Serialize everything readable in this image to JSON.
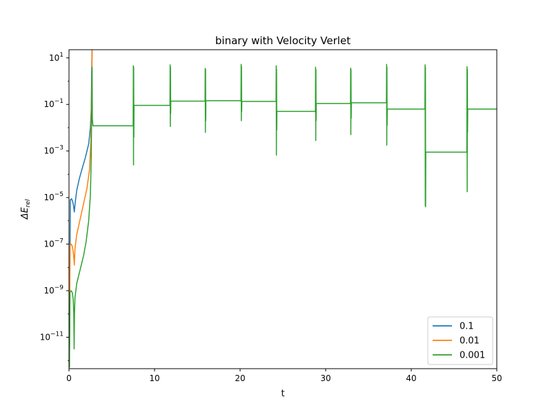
{
  "chart_data": {
    "type": "line",
    "title": "binary with Velocity Verlet",
    "xlabel": "t",
    "ylabel": "ΔE_rel",
    "ylabel_main": "ΔE",
    "ylabel_sub": "rel",
    "xscale": "linear",
    "yscale": "log",
    "xlim": [
      0,
      50
    ],
    "ylim_log10": [
      -12.35,
      1.35
    ],
    "x_ticks": [
      0,
      10,
      20,
      30,
      40,
      50
    ],
    "x_tick_labels": [
      "0",
      "10",
      "20",
      "30",
      "40",
      "50"
    ],
    "y_ticks_log10": [
      -11,
      -9,
      -7,
      -5,
      -3,
      -1,
      1
    ],
    "y_tick_labels": [
      {
        "base": "10",
        "exp": "−11"
      },
      {
        "base": "10",
        "exp": "−9"
      },
      {
        "base": "10",
        "exp": "−7"
      },
      {
        "base": "10",
        "exp": "−5"
      },
      {
        "base": "10",
        "exp": "−3"
      },
      {
        "base": "10",
        "exp": "−1"
      },
      {
        "base": "10",
        "exp": "1"
      }
    ],
    "grid": false,
    "legend_position": "lower-right",
    "series": [
      {
        "name": "0.1",
        "color": "#1f77b4",
        "points": [
          [
            0.05,
            -12.3
          ],
          [
            0.15,
            -5.1
          ],
          [
            0.3,
            -5.05
          ],
          [
            0.45,
            -5.2
          ],
          [
            0.55,
            -5.4
          ],
          [
            0.62,
            -5.62
          ],
          [
            0.7,
            -5.3
          ],
          [
            0.9,
            -4.7
          ],
          [
            1.2,
            -4.2
          ],
          [
            1.5,
            -3.8
          ],
          [
            1.9,
            -3.3
          ],
          [
            2.3,
            -2.7
          ],
          [
            2.5,
            -2.0
          ],
          [
            2.6,
            -1.2
          ],
          [
            2.65,
            0.4
          ],
          [
            2.7,
            1.38
          ],
          [
            50,
            1.38
          ]
        ]
      },
      {
        "name": "0.01",
        "color": "#ff7f0e",
        "points": [
          [
            0.05,
            -12.3
          ],
          [
            0.12,
            -7.05
          ],
          [
            0.25,
            -7.0
          ],
          [
            0.4,
            -7.1
          ],
          [
            0.5,
            -7.35
          ],
          [
            0.58,
            -7.65
          ],
          [
            0.62,
            -7.9
          ],
          [
            0.7,
            -7.2
          ],
          [
            0.9,
            -6.6
          ],
          [
            1.2,
            -6.1
          ],
          [
            1.5,
            -5.6
          ],
          [
            1.8,
            -5.1
          ],
          [
            2.1,
            -4.6
          ],
          [
            2.4,
            -3.8
          ],
          [
            2.55,
            -2.6
          ],
          [
            2.65,
            -0.5
          ],
          [
            2.72,
            1.72
          ],
          [
            50,
            1.72
          ]
        ]
      },
      {
        "name": "0.001",
        "color": "#2ca02c",
        "points": [
          [
            0.05,
            -12.3
          ],
          [
            0.12,
            -9.05
          ],
          [
            0.25,
            -9.0
          ],
          [
            0.4,
            -9.1
          ],
          [
            0.5,
            -9.4
          ],
          [
            0.56,
            -10.0
          ],
          [
            0.6,
            -11.5
          ],
          [
            0.64,
            -10.0
          ],
          [
            0.7,
            -9.3
          ],
          [
            0.9,
            -8.7
          ],
          [
            1.3,
            -8.1
          ],
          [
            1.7,
            -7.5
          ],
          [
            2.0,
            -6.9
          ],
          [
            2.3,
            -6.0
          ],
          [
            2.5,
            -4.9
          ],
          [
            2.6,
            -3.3
          ],
          [
            2.65,
            -1.2
          ],
          [
            2.7,
            0.6
          ],
          [
            2.73,
            -1.6
          ],
          [
            2.8,
            -1.92
          ],
          [
            7.5,
            -1.92
          ],
          [
            7.52,
            0.66
          ],
          [
            7.54,
            -3.6
          ],
          [
            7.56,
            0.6
          ],
          [
            7.58,
            -2.4
          ],
          [
            7.6,
            -1.04
          ],
          [
            11.8,
            -1.04
          ],
          [
            11.82,
            0.7
          ],
          [
            11.84,
            -1.95
          ],
          [
            11.86,
            0.6
          ],
          [
            11.88,
            -1.4
          ],
          [
            11.9,
            -0.86
          ],
          [
            15.9,
            -0.86
          ],
          [
            15.92,
            0.55
          ],
          [
            15.94,
            -2.2
          ],
          [
            15.96,
            0.5
          ],
          [
            15.98,
            -1.7
          ],
          [
            16.0,
            -0.84
          ],
          [
            20.1,
            -0.84
          ],
          [
            20.12,
            0.72
          ],
          [
            20.14,
            -1.7
          ],
          [
            20.16,
            0.64
          ],
          [
            20.18,
            -1.3
          ],
          [
            20.2,
            -0.87
          ],
          [
            24.2,
            -0.87
          ],
          [
            24.22,
            0.66
          ],
          [
            24.24,
            -3.18
          ],
          [
            24.26,
            0.5
          ],
          [
            24.28,
            -2.1
          ],
          [
            24.3,
            -1.3
          ],
          [
            28.8,
            -1.3
          ],
          [
            28.82,
            0.6
          ],
          [
            28.84,
            -2.55
          ],
          [
            28.86,
            0.5
          ],
          [
            28.88,
            -1.7
          ],
          [
            28.9,
            -0.96
          ],
          [
            32.9,
            -0.96
          ],
          [
            32.92,
            0.56
          ],
          [
            32.94,
            -2.3
          ],
          [
            32.96,
            0.5
          ],
          [
            32.98,
            -1.6
          ],
          [
            33.0,
            -0.93
          ],
          [
            37.1,
            -0.93
          ],
          [
            37.12,
            0.72
          ],
          [
            37.14,
            -2.75
          ],
          [
            37.16,
            0.6
          ],
          [
            37.18,
            -1.9
          ],
          [
            37.2,
            -1.2
          ],
          [
            41.6,
            -1.2
          ],
          [
            41.62,
            0.7
          ],
          [
            41.64,
            -5.35
          ],
          [
            41.66,
            0.6
          ],
          [
            41.68,
            -5.4
          ],
          [
            41.7,
            -3.05
          ],
          [
            46.5,
            -3.05
          ],
          [
            46.52,
            0.62
          ],
          [
            46.54,
            -4.75
          ],
          [
            46.56,
            0.5
          ],
          [
            46.58,
            -2.2
          ],
          [
            46.6,
            -1.2
          ],
          [
            50,
            -1.2
          ]
        ]
      }
    ]
  }
}
